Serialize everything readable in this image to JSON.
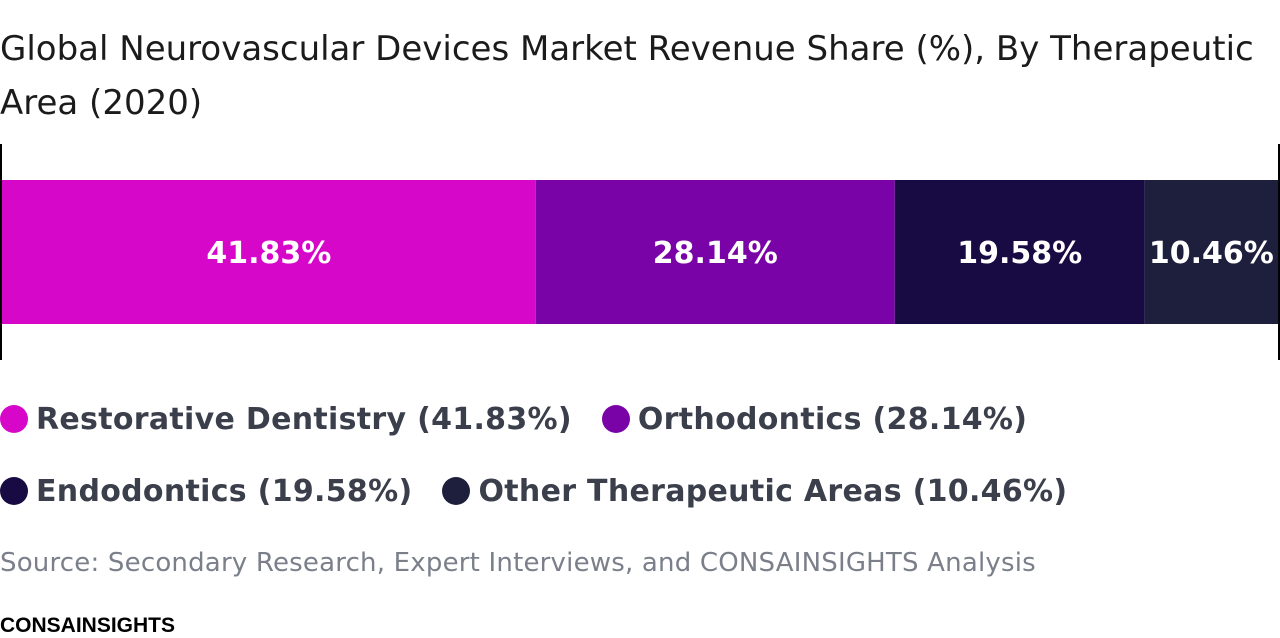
{
  "chart_data": {
    "type": "bar",
    "orientation": "horizontal-stacked-100",
    "title": "Global Neurovascular Devices Market Revenue Share (%), By Therapeutic Area (2020)",
    "xlim": [
      0,
      100
    ],
    "series": [
      {
        "name": "Restorative Dentistry",
        "value": 41.83,
        "label": "41.83%",
        "legend": "Restorative Dentistry (41.83%)",
        "color": "#d707c9"
      },
      {
        "name": "Orthodontics",
        "value": 28.14,
        "label": "28.14%",
        "legend": "Orthodontics (28.14%)",
        "color": "#7a03a8"
      },
      {
        "name": "Endodontics",
        "value": 19.58,
        "label": "19.58%",
        "legend": "Endodontics (19.58%)",
        "color": "#180a42"
      },
      {
        "name": "Other Therapeutic Areas",
        "value": 10.46,
        "label": "10.46%",
        "legend": "Other Therapeutic Areas (10.46%)",
        "color": "#1e1f3d"
      }
    ]
  },
  "source": "Source: Secondary Research, Expert Interviews, and CONSAINSIGHTS Analysis",
  "brand": "CONSAINSIGHTS"
}
